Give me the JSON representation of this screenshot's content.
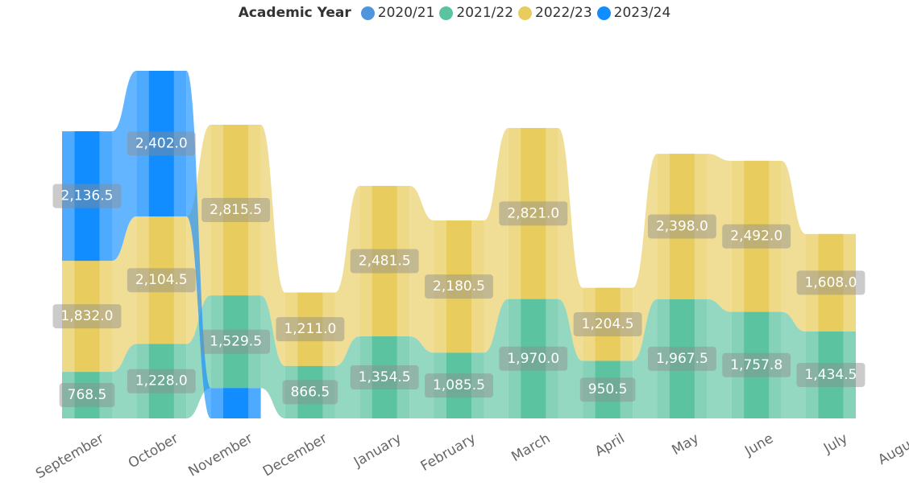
{
  "chart_data": {
    "type": "ribbon",
    "legend_title": "Academic Year",
    "categories": [
      "September",
      "October",
      "November",
      "December",
      "January",
      "February",
      "March",
      "April",
      "May",
      "June",
      "July",
      "August"
    ],
    "ylim": [
      0,
      6000
    ],
    "series": [
      {
        "name": "2020/21",
        "color": "#4f95dd",
        "values": [
          null,
          null,
          null,
          null,
          null,
          null,
          null,
          null,
          null,
          null,
          null,
          null
        ]
      },
      {
        "name": "2021/22",
        "color": "#5cc3a0",
        "values": [
          768.5,
          1228.0,
          1529.5,
          866.5,
          1354.5,
          1085.5,
          1970.0,
          950.5,
          1967.5,
          1757.8,
          1434.5,
          null
        ],
        "value_labels": [
          "768.5",
          "1,228.0",
          "1,529.5",
          "866.5",
          "1,354.5",
          "1,085.5",
          "1,970.0",
          "950.5",
          "1,967.5",
          "1,757.8",
          "1,434.5",
          null
        ]
      },
      {
        "name": "2022/23",
        "color": "#e8cc5e",
        "values": [
          1832.0,
          2104.5,
          2815.5,
          1211.0,
          2481.5,
          2180.5,
          2821.0,
          1204.5,
          2398.0,
          2492.0,
          1608.0,
          null
        ],
        "value_labels": [
          "1,832.0",
          "2,104.5",
          "2,815.5",
          "1,211.0",
          "2,481.5",
          "2,180.5",
          "2,821.0",
          "1,204.5",
          "2,398.0",
          "2,492.0",
          "1,608.0",
          null
        ]
      },
      {
        "name": "2023/24",
        "color": "#118dff",
        "values": [
          2136.5,
          2402.0,
          500,
          null,
          null,
          null,
          null,
          null,
          null,
          null,
          null,
          null
        ],
        "value_labels": [
          "2,136.5",
          "2,402.0",
          null,
          null,
          null,
          null,
          null,
          null,
          null,
          null,
          null,
          null
        ]
      }
    ]
  }
}
